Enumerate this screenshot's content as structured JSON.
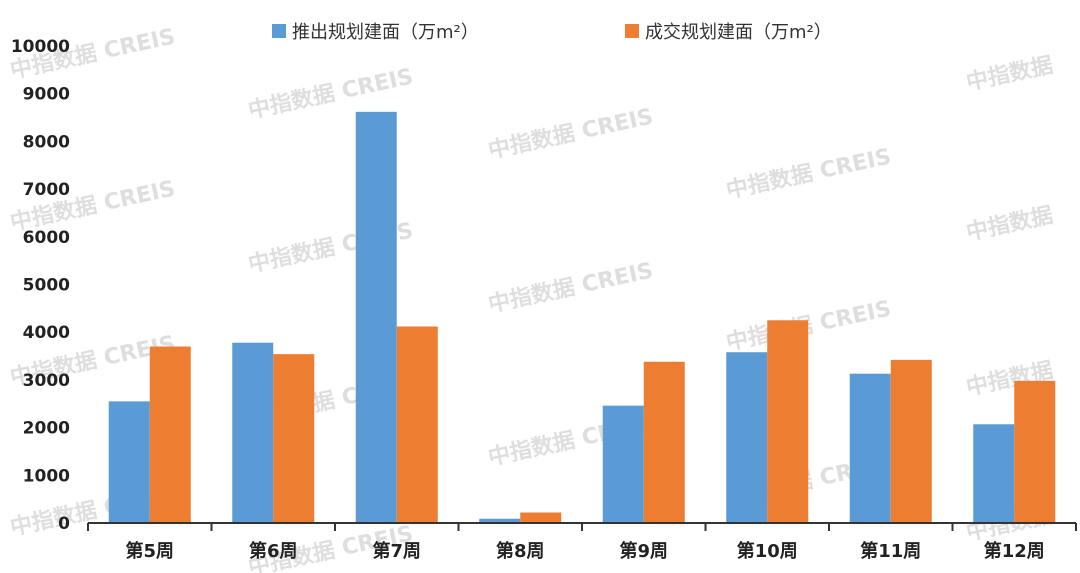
{
  "chart_data": {
    "type": "bar",
    "title": "",
    "xlabel": "",
    "ylabel": "",
    "categories": [
      "第5周",
      "第6周",
      "第7周",
      "第8周",
      "第9周",
      "第10周",
      "第11周",
      "第12周"
    ],
    "series": [
      {
        "name": "推出规划建面（万m²）",
        "color": "#5b9bd5",
        "values": [
          2550,
          3780,
          8620,
          90,
          2460,
          3580,
          3130,
          2070
        ]
      },
      {
        "name": "成交规划建面（万m²）",
        "color": "#ed7d31",
        "values": [
          3700,
          3540,
          4120,
          220,
          3380,
          4250,
          3420,
          2980
        ]
      }
    ],
    "ylim": [
      0,
      10000
    ],
    "yticks": [
      0,
      1000,
      2000,
      3000,
      4000,
      5000,
      6000,
      7000,
      8000,
      9000,
      10000
    ],
    "grid": false,
    "legend_position": "top"
  },
  "watermark": {
    "cn": "中指数据",
    "en": "CREIS"
  }
}
